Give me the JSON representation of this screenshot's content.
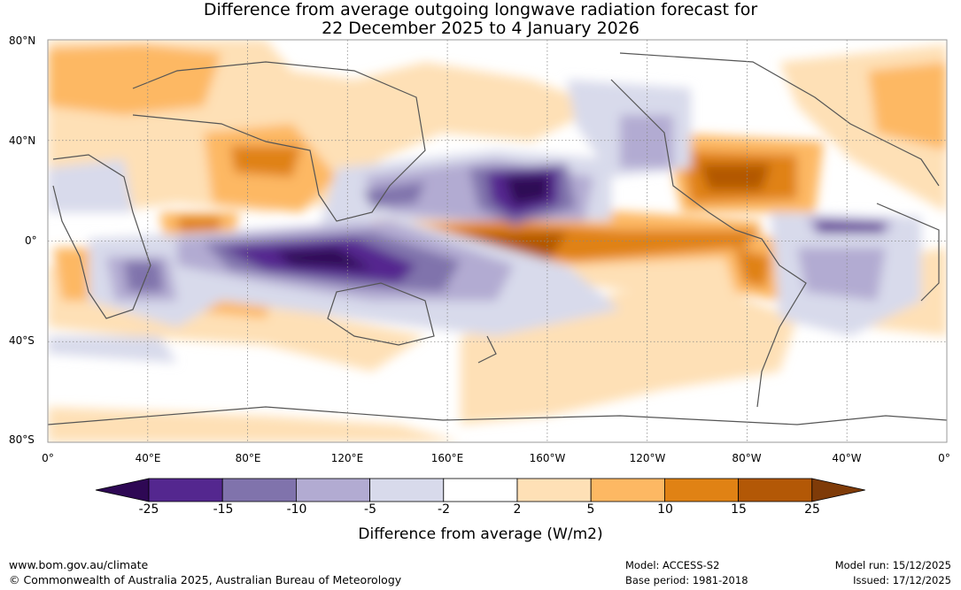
{
  "header": {
    "title_line1": "Difference from average outgoing longwave radiation forecast for",
    "title_line2": "22 December 2025 to 4 January 2026"
  },
  "map": {
    "lat_labels": [
      "80°N",
      "40°N",
      "0°",
      "40°S",
      "80°S"
    ],
    "lon_labels": [
      "0°",
      "40°E",
      "80°E",
      "120°E",
      "160°E",
      "160°W",
      "120°W",
      "80°W",
      "40°W",
      "0°"
    ]
  },
  "colorbar": {
    "title": "Difference from average (W/m2)",
    "ticks": [
      "-25",
      "-15",
      "-10",
      "-5",
      "-2",
      "2",
      "5",
      "10",
      "15",
      "25"
    ],
    "colors": {
      "below_-25": "#2e0854",
      "-25_-15": "#54278f",
      "-15_-10": "#8073ac",
      "-10_-5": "#b2abd2",
      "-5_-2": "#d8daeb",
      "-2_2": "#ffffff",
      "2_5": "#fee0b6",
      "5_10": "#fdb863",
      "10_15": "#e08214",
      "15_25": "#b35806",
      "above_25": "#7f3b08"
    }
  },
  "footer": {
    "website": "www.bom.gov.au/climate",
    "copyright": "© Commonwealth of Australia 2025, Australian Bureau of Meteorology",
    "model": "Model: ACCESS-S2",
    "base_period": "Base period: 1981-2018",
    "model_run": "Model run: 15/12/2025",
    "issued": "Issued: 17/12/2025"
  }
}
